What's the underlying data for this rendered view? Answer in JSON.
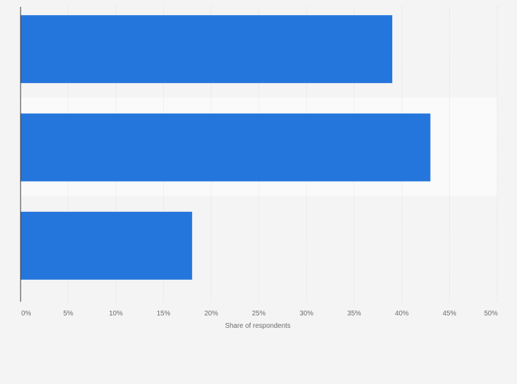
{
  "colors": {
    "bar": "#2576dc",
    "band": "#fafafa",
    "grid": "#d9d9d9",
    "axis": "#333333",
    "background": "#f4f4f4"
  },
  "chart_data": {
    "type": "bar",
    "orientation": "horizontal",
    "categories": [
      "",
      "",
      ""
    ],
    "values": [
      39,
      43,
      18
    ],
    "xlabel": "Share of respondents",
    "xlim": [
      0,
      50
    ],
    "x_ticks": [
      0,
      5,
      10,
      15,
      20,
      25,
      30,
      35,
      40,
      45,
      50
    ],
    "x_tick_labels": [
      "0%",
      "5%",
      "10%",
      "15%",
      "20%",
      "25%",
      "30%",
      "35%",
      "40%",
      "45%",
      "50%"
    ],
    "grid": true,
    "legend": "none"
  }
}
